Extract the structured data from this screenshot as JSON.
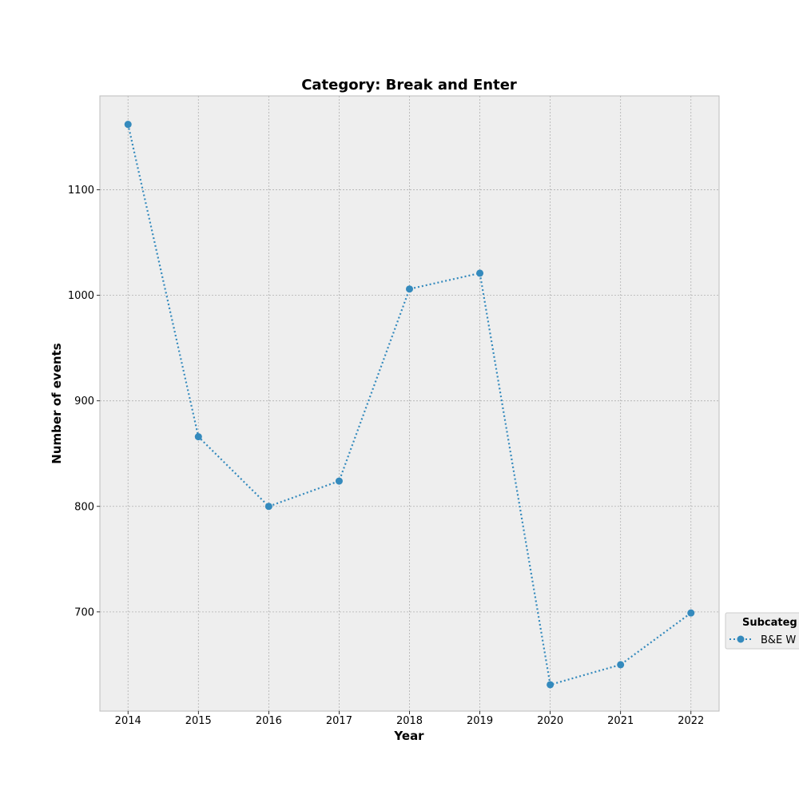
{
  "chart_data": {
    "type": "line",
    "title": "Category: Break and Enter",
    "xlabel": "Year",
    "ylabel": "Number of events",
    "x": [
      2014,
      2015,
      2016,
      2017,
      2018,
      2019,
      2020,
      2021,
      2022
    ],
    "series": [
      {
        "name": "B&E W",
        "values": [
          1162,
          866,
          800,
          824,
          1006,
          1021,
          631,
          650,
          699
        ],
        "color": "#348abd",
        "line_style": "dotted",
        "marker": "circle"
      }
    ],
    "xlim": [
      2013.6,
      2022.4
    ],
    "ylim": [
      606,
      1189
    ],
    "yticks": [
      700,
      800,
      900,
      1000,
      1100
    ],
    "grid": true,
    "legend": {
      "title": "Subcateg",
      "placement": "right-outside"
    },
    "colors": {
      "plot_background": "#eeeeee",
      "grid": "#b0b0b0",
      "frame": "#bcbcbc"
    }
  }
}
